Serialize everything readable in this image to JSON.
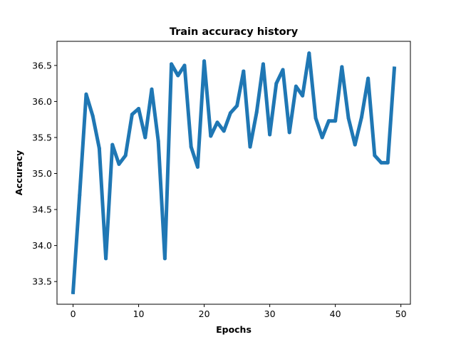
{
  "chart_data": {
    "type": "line",
    "title": "Train accuracy history",
    "xlabel": "Epochs",
    "ylabel": "Accuracy",
    "xlim": [
      -2.45,
      51.45
    ],
    "ylim": [
      33.185,
      36.835
    ],
    "xticks": [
      0,
      10,
      20,
      30,
      40,
      50
    ],
    "yticks": [
      33.5,
      34.0,
      34.5,
      35.0,
      35.5,
      36.0,
      36.5
    ],
    "ytick_labels": [
      "33.5",
      "34.0",
      "34.5",
      "35.0",
      "35.5",
      "36.0",
      "36.5"
    ],
    "grid": false,
    "legend": "none",
    "line_color": "#1f77b4",
    "series": [
      {
        "x": [
          0,
          1,
          2,
          3,
          4,
          5,
          6,
          7,
          8,
          9,
          10,
          11,
          12,
          13,
          14,
          15,
          16,
          17,
          18,
          19,
          20,
          21,
          22,
          23,
          24,
          25,
          26,
          27,
          28,
          29,
          30,
          31,
          32,
          33,
          34,
          35,
          36,
          37,
          38,
          39,
          40,
          41,
          42,
          43,
          44,
          45,
          46,
          47,
          48,
          49
        ],
        "values": [
          33.35,
          34.7,
          36.1,
          35.8,
          35.35,
          33.82,
          35.4,
          35.13,
          35.25,
          35.82,
          35.9,
          35.5,
          36.17,
          35.45,
          33.82,
          36.52,
          36.36,
          36.5,
          35.37,
          35.09,
          36.56,
          35.52,
          35.71,
          35.59,
          35.84,
          35.94,
          36.42,
          35.37,
          35.85,
          36.52,
          35.54,
          36.25,
          36.44,
          35.57,
          36.21,
          36.08,
          36.67,
          35.77,
          35.5,
          35.73,
          35.73,
          36.48,
          35.77,
          35.4,
          35.78,
          36.32,
          35.25,
          35.15,
          35.15,
          36.46
        ]
      }
    ]
  }
}
